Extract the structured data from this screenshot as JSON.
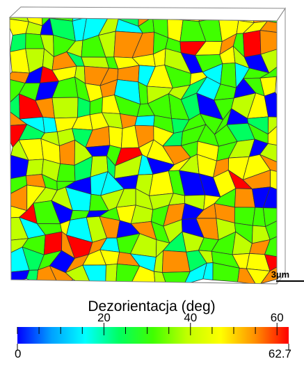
{
  "scale_bar": "3µm",
  "colorbar": {
    "title": "Dezorientacja (deg)",
    "min": 0,
    "max": 62.7,
    "ticks": [
      20,
      40,
      60
    ],
    "minor_ticks": [
      0,
      5,
      10,
      15,
      25,
      30,
      35,
      45,
      50,
      55
    ],
    "colormap": [
      "#0000ff",
      "#00a0ff",
      "#00ffff",
      "#00ff60",
      "#40ff00",
      "#c0ff00",
      "#ffff00",
      "#ff9000",
      "#ff0000"
    ]
  }
}
